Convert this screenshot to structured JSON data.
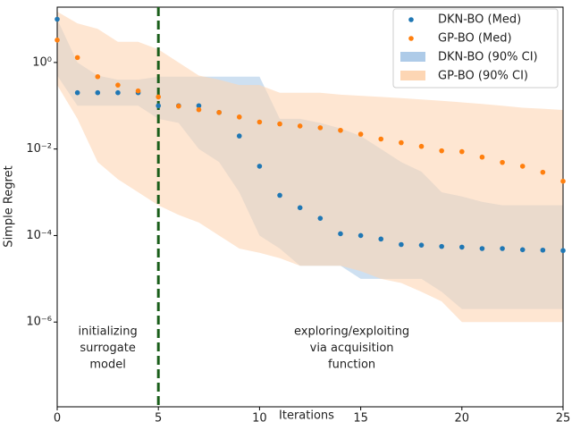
{
  "chart_data": {
    "type": "scatter",
    "x_label": "Iterations",
    "y_label": "Simple Regret",
    "x": [
      0,
      1,
      2,
      3,
      4,
      5,
      6,
      7,
      8,
      9,
      10,
      11,
      12,
      13,
      14,
      15,
      16,
      17,
      18,
      19,
      20,
      21,
      22,
      23,
      24,
      25
    ],
    "series": [
      {
        "name": "DKN-BO (Med)",
        "color": "#1f77b4",
        "values": [
          10,
          0.2,
          0.2,
          0.2,
          0.2,
          0.1,
          0.1,
          0.1,
          0.07,
          0.02,
          0.004,
          0.00085,
          0.00044,
          0.00025,
          0.00011,
          0.0001,
          8.3e-05,
          6.2e-05,
          6e-05,
          5.6e-05,
          5.4e-05,
          5e-05,
          5e-05,
          4.7e-05,
          4.6e-05,
          4.5e-05
        ]
      },
      {
        "name": "GP-BO (Med)",
        "color": "#ff7f0e",
        "values": [
          3.3,
          1.3,
          0.47,
          0.3,
          0.22,
          0.16,
          0.098,
          0.081,
          0.07,
          0.055,
          0.042,
          0.038,
          0.034,
          0.031,
          0.027,
          0.022,
          0.017,
          0.014,
          0.0115,
          0.0091,
          0.0087,
          0.0065,
          0.0049,
          0.004,
          0.0029,
          0.0018
        ]
      }
    ],
    "bands": [
      {
        "name": "DKN-BO (90% CI)",
        "color": "#aecbe8",
        "upper": [
          10,
          1,
          0.5,
          0.4,
          0.4,
          0.47,
          0.47,
          0.47,
          0.47,
          0.47,
          0.47,
          0.05,
          0.05,
          0.04,
          0.03,
          0.02,
          0.01,
          0.005,
          0.003,
          0.001,
          0.0008,
          0.0006,
          0.0005,
          0.0005,
          0.0005,
          0.0005
        ],
        "lower": [
          0.5,
          0.1,
          0.1,
          0.1,
          0.1,
          0.05,
          0.04,
          0.01,
          0.005,
          0.001,
          0.0001,
          5e-05,
          2e-05,
          2e-05,
          2e-05,
          1e-05,
          1e-05,
          1e-05,
          1e-05,
          5e-06,
          2e-06,
          2e-06,
          2e-06,
          2e-06,
          2e-06,
          2e-06
        ]
      },
      {
        "name": "GP-BO (90% CI)",
        "color": "#fdd6b4",
        "upper": [
          15,
          8,
          6,
          3,
          3,
          2,
          1,
          0.5,
          0.4,
          0.3,
          0.3,
          0.2,
          0.2,
          0.2,
          0.18,
          0.17,
          0.16,
          0.15,
          0.14,
          0.13,
          0.12,
          0.11,
          0.1,
          0.09,
          0.085,
          0.08
        ],
        "lower": [
          0.3,
          0.05,
          0.005,
          0.002,
          0.001,
          0.0005,
          0.0003,
          0.0002,
          0.0001,
          5e-05,
          4e-05,
          3e-05,
          2e-05,
          2e-05,
          2e-05,
          1.5e-05,
          1e-05,
          8e-06,
          5e-06,
          3e-06,
          1e-06,
          1e-06,
          1e-06,
          1e-06,
          1e-06,
          1e-06
        ]
      }
    ],
    "vline": {
      "x": 5,
      "color": "#1a5e1a"
    },
    "annotations": [
      [
        "initializing",
        "surrogate",
        "model"
      ],
      [
        "exploring/exploiting",
        "via acquisition",
        "function"
      ]
    ],
    "xlim": [
      0,
      25
    ],
    "xticks": [
      0,
      5,
      10,
      15,
      20,
      25
    ],
    "ylim": [
      1.1e-08,
      19
    ],
    "log_y": true,
    "yticks": [
      {
        "value": 1e-06,
        "label": "10⁻⁶"
      },
      {
        "value": 0.0001,
        "label": "10⁻⁴"
      },
      {
        "value": 0.01,
        "label": "10⁻²"
      },
      {
        "value": 1,
        "label": "10⁰"
      }
    ],
    "legend": "upper right"
  }
}
